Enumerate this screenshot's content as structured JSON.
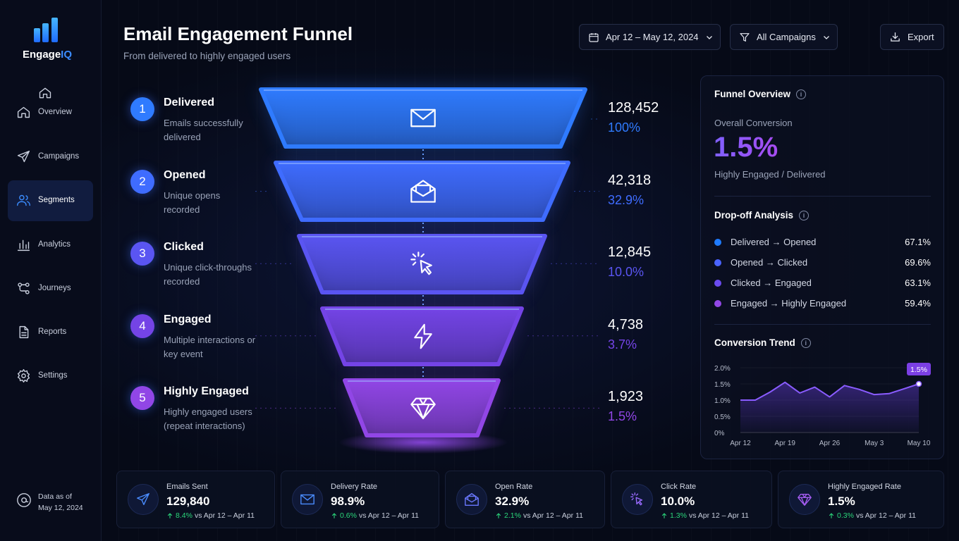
{
  "brand": {
    "name": "Engage",
    "accent": "IQ"
  },
  "nav": [
    {
      "label": "Overview"
    },
    {
      "label": "Campaigns"
    },
    {
      "label": "Segments",
      "active": true
    },
    {
      "label": "Analytics"
    },
    {
      "label": "Journeys"
    },
    {
      "label": "Reports"
    },
    {
      "label": "Settings"
    }
  ],
  "data_note": {
    "label": "Data as of",
    "date": "May 12, 2024"
  },
  "header": {
    "title": "Email Engagement Funnel",
    "subtitle": "From delivered to highly engaged users"
  },
  "controls": {
    "date_range": "Apr 12 – May 12, 2024",
    "campaigns": "All Campaigns",
    "export": "Export"
  },
  "funnel": [
    {
      "step": 1,
      "label": "Delivered",
      "description": "Emails successfully delivered",
      "count": "128,452",
      "percent": "100%",
      "color": "#2f7bff"
    },
    {
      "step": 2,
      "label": "Opened",
      "description": "Unique opens recorded",
      "count": "42,318",
      "percent": "32.9%",
      "color": "#3f6cff"
    },
    {
      "step": 3,
      "label": "Clicked",
      "description": "Unique click-throughs recorded",
      "count": "12,845",
      "percent": "10.0%",
      "color": "#5a55f2"
    },
    {
      "step": 4,
      "label": "Engaged",
      "description": "Multiple interactions or key event",
      "count": "4,738",
      "percent": "3.7%",
      "color": "#7444e6"
    },
    {
      "step": 5,
      "label": "Highly Engaged",
      "description": "Highly engaged users (repeat interactions)",
      "count": "1,923",
      "percent": "1.5%",
      "color": "#9146e6"
    }
  ],
  "overview": {
    "title": "Funnel Overview",
    "conversion_label": "Overall Conversion",
    "conversion_value": "1.5%",
    "conversion_note": "Highly Engaged / Delivered"
  },
  "dropoff": {
    "title": "Drop-off Analysis",
    "items": [
      {
        "label": "Delivered → Opened",
        "value": "67.1%",
        "color": "#1f7bff"
      },
      {
        "label": "Opened → Clicked",
        "value": "69.6%",
        "color": "#4a63ff"
      },
      {
        "label": "Clicked → Engaged",
        "value": "63.1%",
        "color": "#6a4bef"
      },
      {
        "label": "Engaged → Highly Engaged",
        "value": "59.4%",
        "color": "#9247e6"
      }
    ]
  },
  "chart_data": {
    "type": "line",
    "title": "Conversion Trend",
    "categories": [
      "Apr 12",
      null,
      null,
      "Apr 19",
      null,
      null,
      "Apr 26",
      null,
      null,
      "May 3",
      null,
      null,
      "May 10"
    ],
    "values": [
      1.0,
      1.0,
      1.25,
      1.55,
      1.22,
      1.4,
      1.1,
      1.45,
      1.33,
      1.17,
      1.2,
      1.35,
      1.5
    ],
    "value_labels": [
      null,
      null,
      null,
      null,
      null,
      null,
      null,
      null,
      null,
      null,
      null,
      null,
      "1.5%"
    ],
    "color": "#8a5cff",
    "ylim": [
      0,
      2
    ],
    "yticks": [
      {
        "value": 0,
        "label": "0%"
      },
      {
        "value": 0.5,
        "label": "0.5%"
      },
      {
        "value": 1,
        "label": "1.0%"
      },
      {
        "value": 1.5,
        "label": "1.5%"
      },
      {
        "value": 2,
        "label": "2.0%"
      }
    ],
    "grid": true
  },
  "kpis": [
    {
      "label": "Emails Sent",
      "value": "129,840",
      "change": "8.4%",
      "comparison": "vs Apr 12 – Apr 11"
    },
    {
      "label": "Delivery Rate",
      "value": "98.9%",
      "change": "0.6%",
      "comparison": "vs Apr 12 – Apr 11"
    },
    {
      "label": "Open Rate",
      "value": "32.9%",
      "change": "2.1%",
      "comparison": "vs Apr 12 – Apr 11"
    },
    {
      "label": "Click Rate",
      "value": "10.0%",
      "change": "1.3%",
      "comparison": "vs Apr 12 – Apr 11"
    },
    {
      "label": "Highly Engaged Rate",
      "value": "1.5%",
      "change": "0.3%",
      "comparison": "vs Apr 12 – Apr 11"
    }
  ]
}
